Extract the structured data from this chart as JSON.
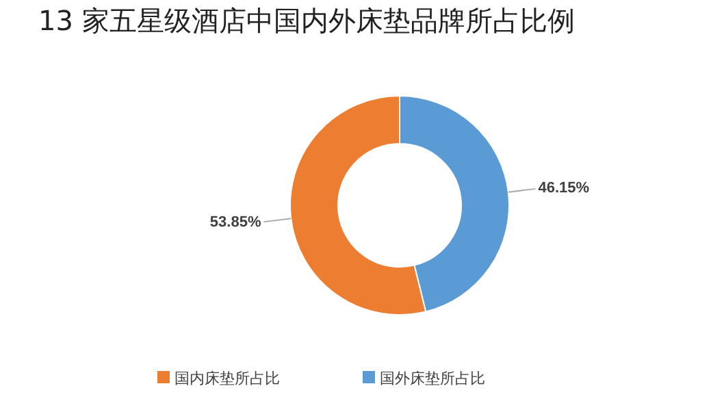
{
  "chart_data": {
    "type": "donut",
    "title": "13 家五星级酒店中国内外床垫品牌所占比例",
    "categories": [
      "国内床垫所占比",
      "国外床垫所占比"
    ],
    "values": [
      53.85,
      46.15
    ],
    "colors": [
      "#ed7d31",
      "#5b9bd5"
    ],
    "value_labels": [
      "53.85%",
      "46.15%"
    ],
    "legend": "bottom"
  }
}
